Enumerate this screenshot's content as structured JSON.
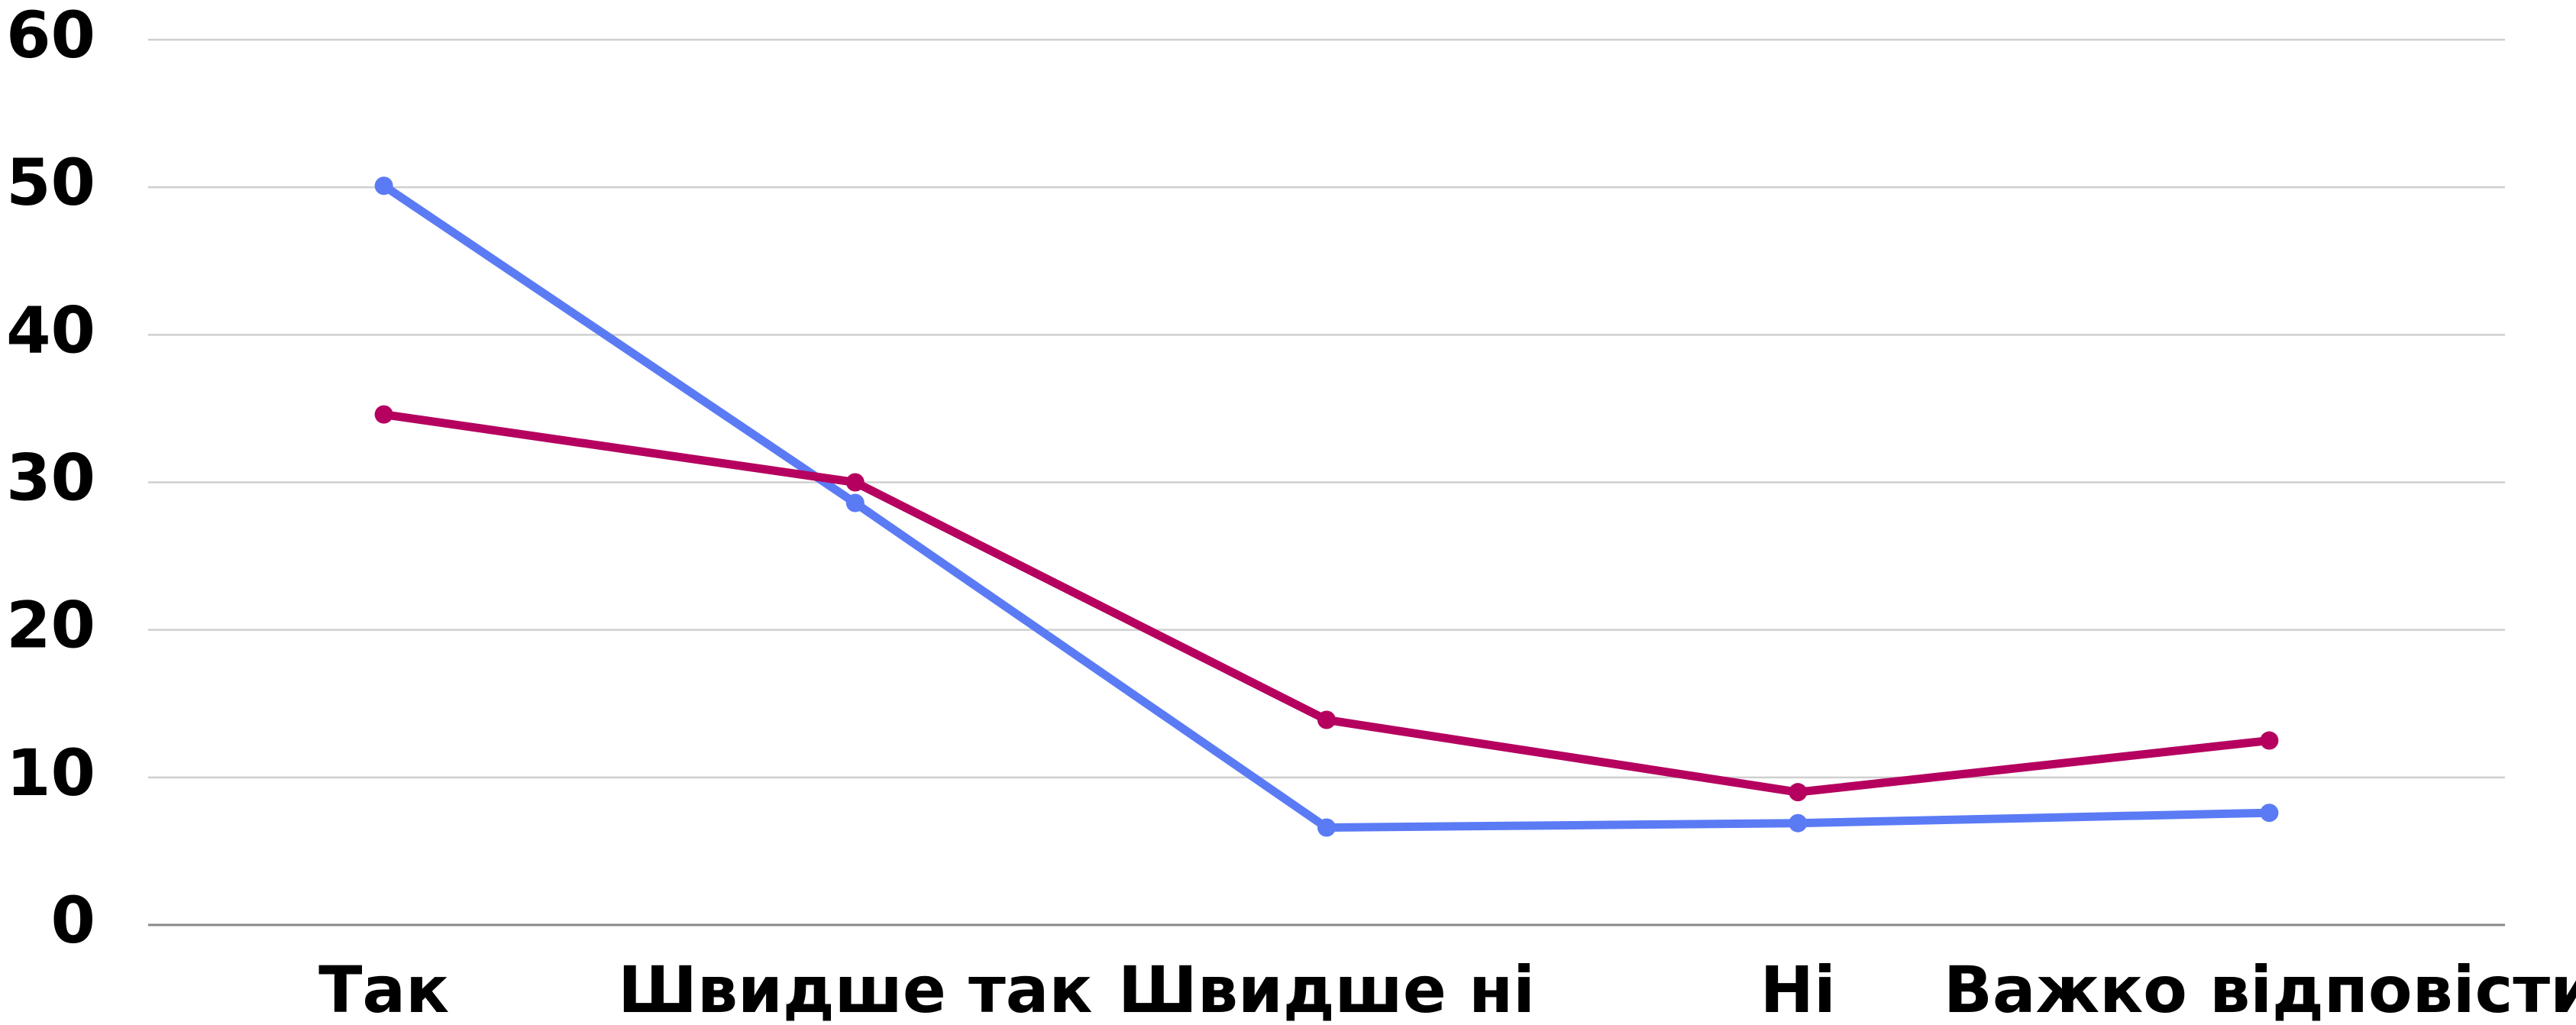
{
  "chart_data": {
    "type": "line",
    "categories": [
      "Так",
      "Швидше так",
      "Швидше ні",
      "Ні",
      "Важко відповісти"
    ],
    "series": [
      {
        "color": "#5b7bf5",
        "values": [
          50.1,
          28.6,
          6.6,
          6.9,
          7.6
        ]
      },
      {
        "color": "#b5005f",
        "values": [
          34.6,
          30.0,
          13.9,
          9.0,
          12.5
        ]
      }
    ],
    "ylim": [
      0,
      60
    ],
    "yticks": [
      0,
      10,
      20,
      30,
      40,
      50,
      60
    ],
    "grid": true
  }
}
